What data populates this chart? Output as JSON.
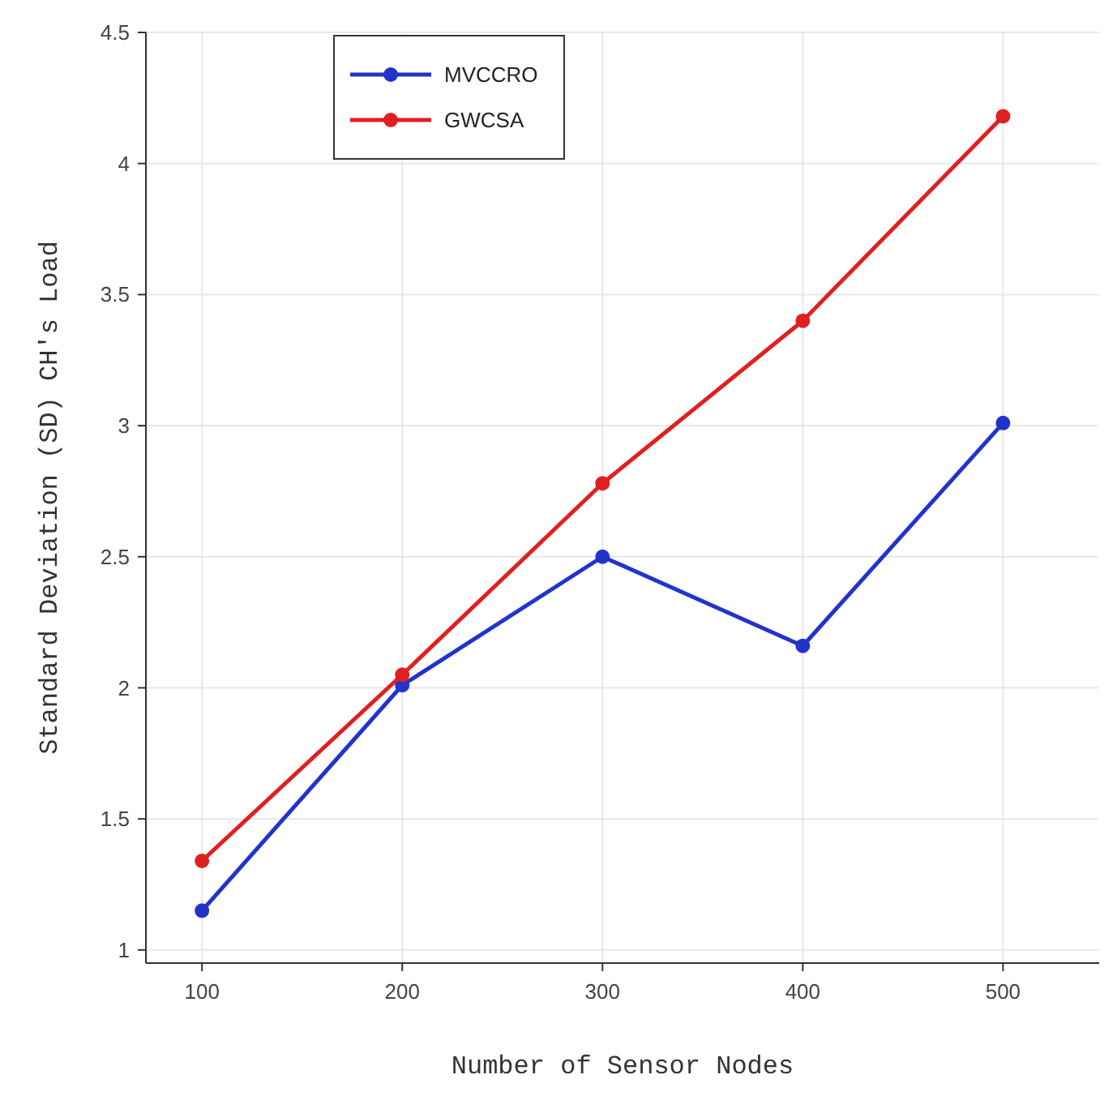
{
  "chart_data": {
    "type": "line",
    "xlabel": "Number of Sensor Nodes",
    "ylabel": "Standard Deviation (SD) CH's Load",
    "x": [
      100,
      200,
      300,
      400,
      500
    ],
    "series": [
      {
        "name": "MVCCRO",
        "color": "#2233cc",
        "values": [
          1.15,
          2.01,
          2.5,
          2.16,
          3.01
        ]
      },
      {
        "name": "GWCSA",
        "color": "#e02020",
        "values": [
          1.34,
          2.05,
          2.78,
          3.4,
          4.18
        ]
      }
    ],
    "xlim": [
      72,
      548
    ],
    "xticks": [
      100,
      200,
      300,
      400,
      500
    ],
    "ylim": [
      0.95,
      4.5
    ],
    "yticks": [
      1,
      1.5,
      2,
      2.5,
      3,
      3.5,
      4,
      4.5
    ],
    "grid": true,
    "legend": "top left",
    "marker": "circle",
    "line_style": "solid"
  }
}
